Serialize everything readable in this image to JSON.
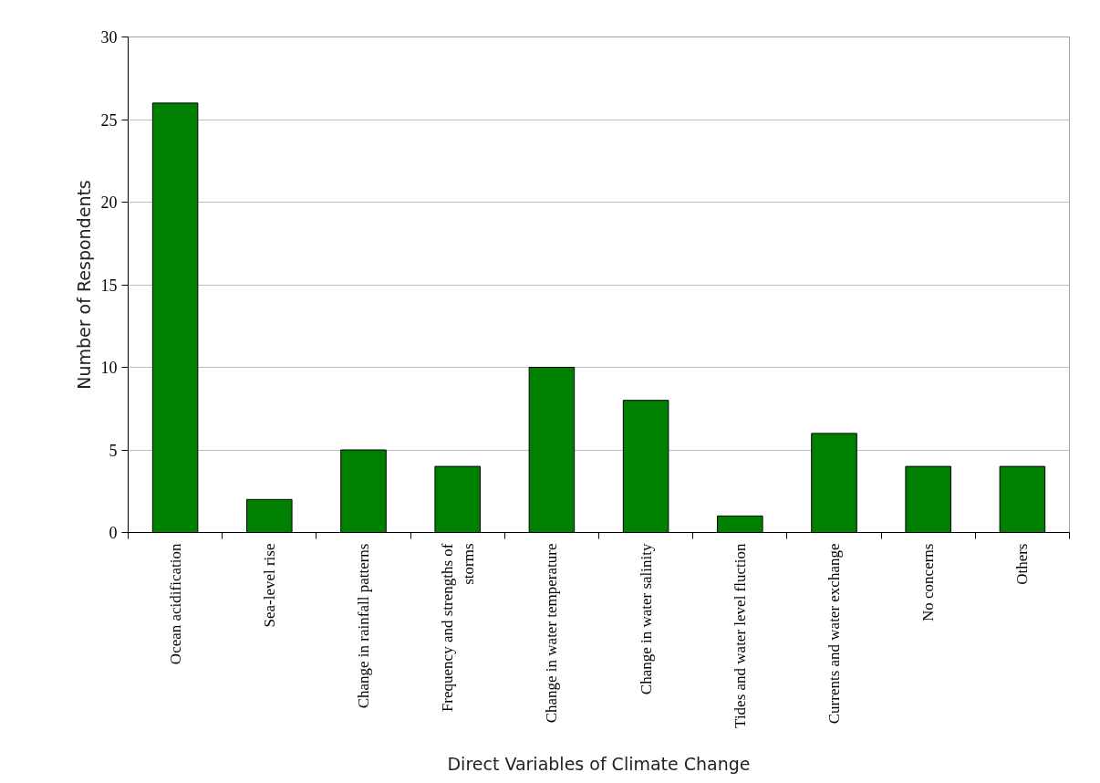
{
  "chart_data": {
    "type": "bar",
    "xlabel": "Direct Variables of Climate Change",
    "ylabel": "Number of Respondents",
    "categories": [
      "Ocean acidification",
      "Sea-level rise",
      "Change in rainfall patterns",
      "Frequency and strengths of\nstorms",
      "Change in water temperature",
      "Change in water salinity",
      "Tides and water level fluction",
      "Currents and water exchange",
      "No concerns",
      "Others"
    ],
    "values": [
      26,
      2,
      5,
      4,
      10,
      8,
      1,
      6,
      4,
      4
    ],
    "color": "#008000",
    "ylim": [
      0,
      30
    ],
    "yticks": [
      0,
      5,
      10,
      15,
      20,
      25,
      30
    ],
    "grid": "y"
  }
}
